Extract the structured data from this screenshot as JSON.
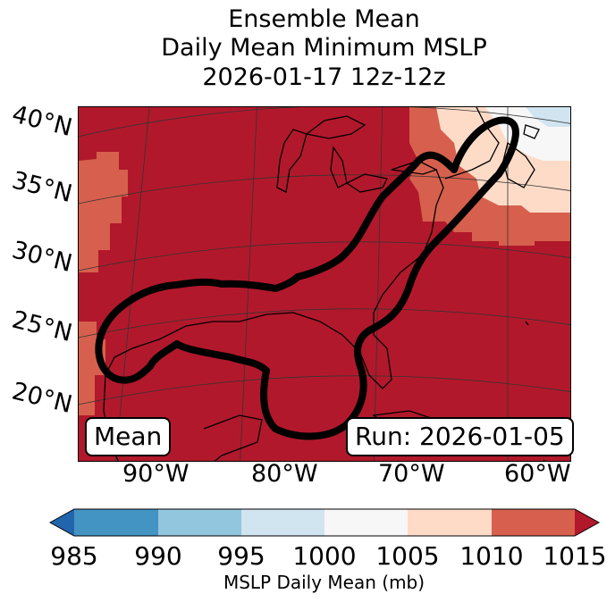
{
  "title": {
    "line1": "Ensemble Mean",
    "line2": "Daily Mean Minimum MSLP",
    "line3": "2026-01-17 12z-12z"
  },
  "map": {
    "lat_labels": [
      "40°N",
      "35°N",
      "30°N",
      "25°N",
      "20°N"
    ],
    "lon_labels": [
      "90°W",
      "80°W",
      "70°W",
      "60°W"
    ],
    "field_colors": {
      "1005_1010": "#fddbc7",
      "1010_1015": "#d6604d",
      "above_1015": "#b2182b",
      "1000_1005": "#f7f7f7",
      "995_1000": "#d1e5f0"
    },
    "mean_label": "Mean",
    "run_label": "Run: 2026-01-05"
  },
  "colorbar": {
    "label": "MSLP Daily Mean (mb)",
    "ticks": [
      "985",
      "990",
      "995",
      "1000",
      "1005",
      "1010",
      "1015"
    ],
    "colors": [
      "#2166ac",
      "#4393c3",
      "#92c5de",
      "#d1e5f0",
      "#f7f7f7",
      "#fddbc7",
      "#d6604d",
      "#b2182b"
    ]
  }
}
